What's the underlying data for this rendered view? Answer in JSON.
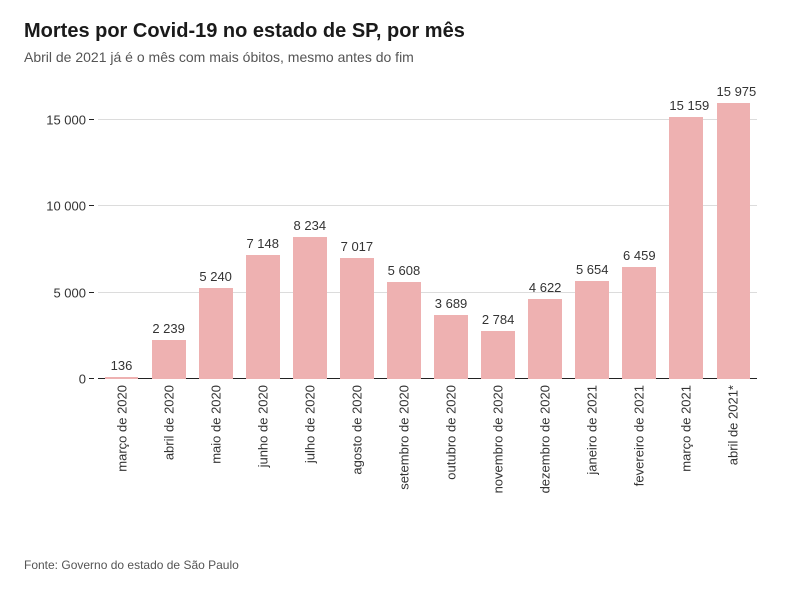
{
  "title": "Mortes por Covid-19 no estado de SP, por mês",
  "subtitle": "Abril de 2021 já é o mês com mais óbitos, mesmo antes do fim",
  "source": "Fonte: Governo do estado de São Paulo",
  "chart": {
    "type": "bar",
    "categories": [
      "março de 2020",
      "abril de 2020",
      "maio de 2020",
      "junho de 2020",
      "julho de 2020",
      "agosto de 2020",
      "setembro de 2020",
      "outubro de 2020",
      "novembro de 2020",
      "dezembro de 2020",
      "janeiro de 2021",
      "fevereiro de 2021",
      "março de 2021",
      "abril de 2021*"
    ],
    "values": [
      136,
      2239,
      5240,
      7148,
      8234,
      7017,
      5608,
      3689,
      2784,
      4622,
      5654,
      6459,
      15159,
      15975
    ],
    "value_labels": [
      "136",
      "2 239",
      "5 240",
      "7 148",
      "8 234",
      "7 017",
      "5 608",
      "3 689",
      "2 784",
      "4 622",
      "5 654",
      "6 459",
      "15 159",
      "15 975"
    ],
    "bar_color": "#eeb1b1",
    "background_color": "#ffffff",
    "grid_color": "#dcdcdc",
    "axis_color": "#222222",
    "text_color": "#333333",
    "ylim": [
      0,
      17000
    ],
    "yticks": [
      0,
      5000,
      10000,
      15000
    ],
    "ytick_labels": [
      "0",
      "5 000",
      "10 000",
      "15 000"
    ],
    "bar_width_ratio": 0.72,
    "title_fontsize": 20,
    "subtitle_fontsize": 14,
    "label_fontsize": 13,
    "source_fontsize": 12
  }
}
